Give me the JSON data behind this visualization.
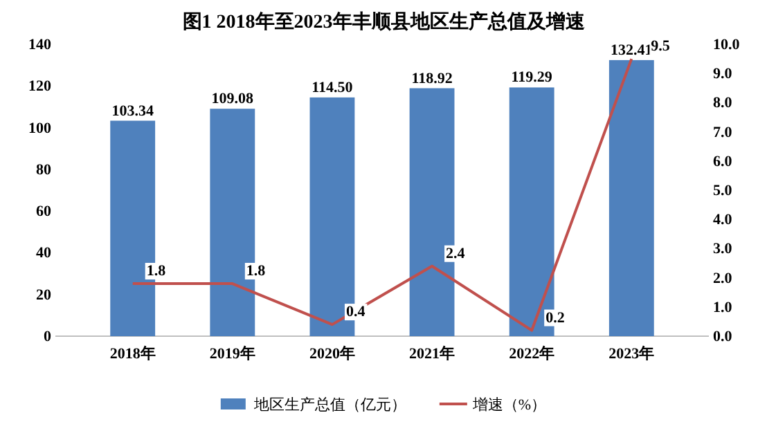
{
  "chart_data": {
    "type": "bar",
    "title": "图1   2018年至2023年丰顺县地区生产总值及增速",
    "categories": [
      "2018年",
      "2019年",
      "2020年",
      "2021年",
      "2022年",
      "2023年"
    ],
    "series": [
      {
        "name": "地区生产总值（亿元）",
        "color": "#4f81bd",
        "values": [
          103.34,
          109.08,
          114.5,
          118.92,
          119.29,
          132.41
        ],
        "value_labels": [
          "103.34",
          "109.08",
          "114.50",
          "118.92",
          "119.29",
          "132.41"
        ]
      },
      {
        "name": "增速（%）",
        "type": "line",
        "axis": "y2",
        "color": "#c0504d",
        "values": [
          1.8,
          1.8,
          0.4,
          2.4,
          0.2,
          9.5
        ],
        "value_labels": [
          "1.8",
          "1.8",
          "0.4",
          "2.4",
          "0.2",
          "9.5"
        ]
      }
    ],
    "ylim": [
      0,
      140
    ],
    "yticks": [
      0,
      20,
      40,
      60,
      80,
      100,
      120,
      140
    ],
    "y2lim": [
      0,
      10
    ],
    "y2ticks": [
      {
        "value": 0,
        "label": "0.0"
      },
      {
        "value": 1,
        "label": "1.0"
      },
      {
        "value": 2,
        "label": "2.0"
      },
      {
        "value": 3,
        "label": "3.0"
      },
      {
        "value": 4,
        "label": "4.0"
      },
      {
        "value": 5,
        "label": "5.0"
      },
      {
        "value": 6,
        "label": "6.0"
      },
      {
        "value": 7,
        "label": "7.0"
      },
      {
        "value": 8,
        "label": "8.0"
      },
      {
        "value": 9,
        "label": "9.0"
      },
      {
        "value": 10,
        "label": "10.0"
      }
    ],
    "legend": "bottom",
    "marker": "none",
    "line_style": "solid"
  }
}
